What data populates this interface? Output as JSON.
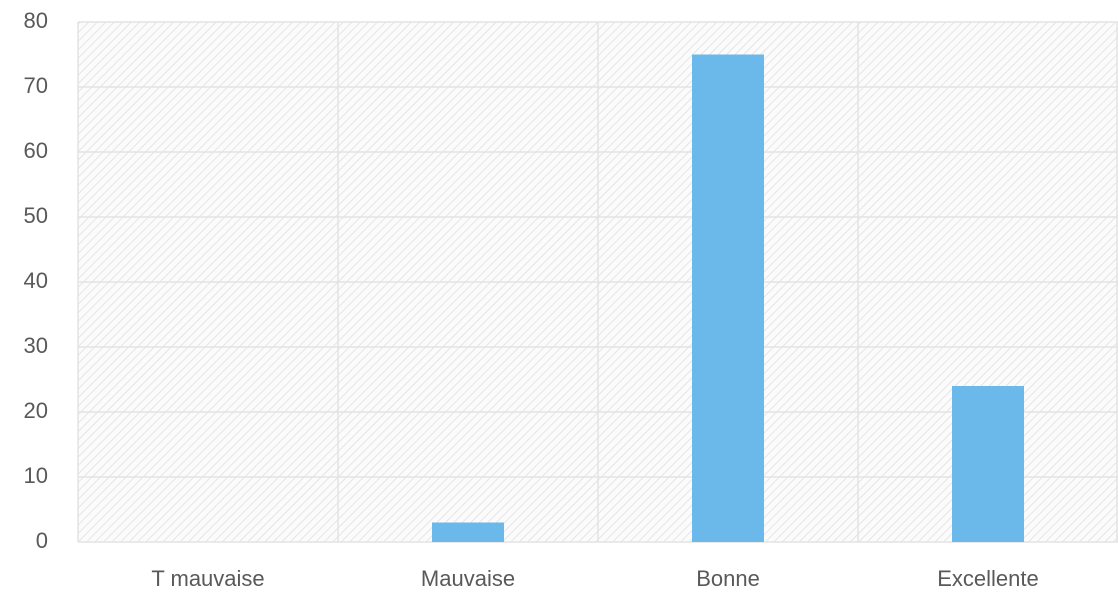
{
  "chart_data": {
    "type": "bar",
    "categories": [
      "T mauvaise",
      "Mauvaise",
      "Bonne",
      "Excellente"
    ],
    "values": [
      0,
      3,
      75,
      24
    ],
    "color": "#6bb8ea",
    "ylim": [
      0,
      80
    ],
    "yticks": [
      0,
      10,
      20,
      30,
      40,
      50,
      60,
      70,
      80
    ],
    "grid": true
  }
}
